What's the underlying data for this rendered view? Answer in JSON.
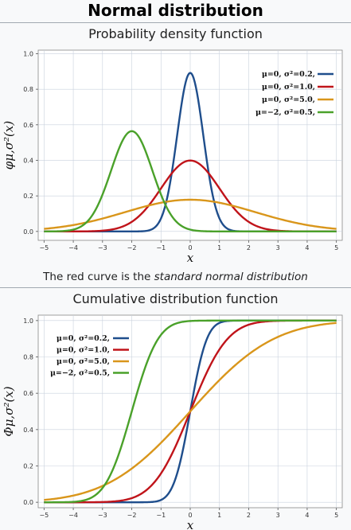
{
  "page": {
    "title": "Normal distribution",
    "caption_prefix": "The red curve is the ",
    "caption_emphasis": "standard normal distribution"
  },
  "colors": {
    "blue": "#1f4e8c",
    "red": "#c0141a",
    "orange": "#d9961b",
    "green": "#4aa12a",
    "grid": "#c9d1dd",
    "plot_bg": "#ffffff"
  },
  "chart_data": [
    {
      "type": "line",
      "title": "Probability density function",
      "xlabel": "x",
      "ylabel": "φμ,σ²(x)",
      "xlim": [
        -5.2,
        5.2
      ],
      "ylim": [
        -0.05,
        1.02
      ],
      "x_ticks": [
        -5,
        -4,
        -3,
        -2,
        -1,
        0,
        1,
        2,
        3,
        4,
        5
      ],
      "y_ticks": [
        0.0,
        0.2,
        0.4,
        0.6,
        0.8,
        1.0
      ],
      "y_tick_labels": [
        "0.0",
        "0.2",
        "0.4",
        "0.6",
        "0.8",
        "1.0"
      ],
      "grid": true,
      "legend_position": "top-right",
      "function": "pdf",
      "series": [
        {
          "name": "μ=0, σ²=0.2,",
          "mu": 0,
          "variance": 0.2,
          "color": "#1f4e8c",
          "peak": 0.892
        },
        {
          "name": "μ=0, σ²=1.0,",
          "mu": 0,
          "variance": 1.0,
          "color": "#c0141a",
          "peak": 0.399
        },
        {
          "name": "μ=0, σ²=5.0,",
          "mu": 0,
          "variance": 5.0,
          "color": "#d9961b",
          "peak": 0.178
        },
        {
          "name": "μ=−2, σ²=0.5,",
          "mu": -2,
          "variance": 0.5,
          "color": "#4aa12a",
          "peak": 0.564
        }
      ]
    },
    {
      "type": "line",
      "title": "Cumulative distribution function",
      "xlabel": "x",
      "ylabel": "Φμ,σ²(x)",
      "xlim": [
        -5.2,
        5.2
      ],
      "ylim": [
        -0.03,
        1.03
      ],
      "x_ticks": [
        -5,
        -4,
        -3,
        -2,
        -1,
        0,
        1,
        2,
        3,
        4,
        5
      ],
      "y_ticks": [
        0.0,
        0.2,
        0.4,
        0.6,
        0.8,
        1.0
      ],
      "y_tick_labels": [
        "0.0",
        "0.2",
        "0.4",
        "0.6",
        "0.8",
        "1.0"
      ],
      "grid": true,
      "legend_position": "top-left",
      "function": "cdf",
      "series": [
        {
          "name": "μ=0, σ²=0.2,",
          "mu": 0,
          "variance": 0.2,
          "color": "#1f4e8c"
        },
        {
          "name": "μ=0, σ²=1.0,",
          "mu": 0,
          "variance": 1.0,
          "color": "#c0141a"
        },
        {
          "name": "μ=0, σ²=5.0,",
          "mu": 0,
          "variance": 5.0,
          "color": "#d9961b"
        },
        {
          "name": "μ=−2, σ²=0.5,",
          "mu": -2,
          "variance": 0.5,
          "color": "#4aa12a"
        }
      ]
    }
  ]
}
